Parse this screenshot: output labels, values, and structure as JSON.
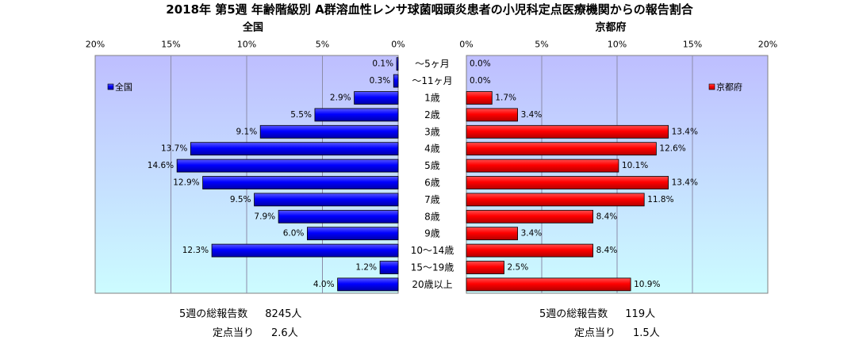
{
  "title": "2018年 第5週 年齢階級別 A群溶血性レンサ球菌咽頭炎患者の小児科定点医療機関からの報告割合",
  "colors": {
    "national": "#0000ff",
    "kyoto": "#ff0000",
    "plot_bg_top": "#bebeff",
    "plot_bg_bottom": "#ccfcff"
  },
  "chart_data": [
    {
      "type": "bar",
      "orientation": "horizontal",
      "direction": "right-to-left",
      "title": "全国",
      "categories": [
        "～5ヶ月",
        "～11ヶ月",
        "1歳",
        "2歳",
        "3歳",
        "4歳",
        "5歳",
        "6歳",
        "7歳",
        "8歳",
        "9歳",
        "10～14歳",
        "15～19歳",
        "20歳以上"
      ],
      "series": [
        {
          "name": "全国",
          "values": [
            0.1,
            0.3,
            2.9,
            5.5,
            9.1,
            13.7,
            14.6,
            12.9,
            9.5,
            7.9,
            6.0,
            12.3,
            1.2,
            4.0
          ]
        }
      ],
      "value_labels": [
        "0.1%",
        "0.3%",
        "2.9%",
        "5.5%",
        "9.1%",
        "13.7%",
        "14.6%",
        "12.9%",
        "9.5%",
        "7.9%",
        "6.0%",
        "12.3%",
        "1.2%",
        "4.0%"
      ],
      "ticks": [
        "20%",
        "15%",
        "10%",
        "5%",
        "0%"
      ],
      "xlim": [
        0,
        20
      ],
      "grid": true,
      "legend": "left"
    },
    {
      "type": "bar",
      "orientation": "horizontal",
      "direction": "left-to-right",
      "title": "京都府",
      "categories": [
        "～5ヶ月",
        "～11ヶ月",
        "1歳",
        "2歳",
        "3歳",
        "4歳",
        "5歳",
        "6歳",
        "7歳",
        "8歳",
        "9歳",
        "10～14歳",
        "15～19歳",
        "20歳以上"
      ],
      "series": [
        {
          "name": "京都府",
          "values": [
            0.0,
            0.0,
            1.7,
            3.4,
            13.4,
            12.6,
            10.1,
            13.4,
            11.8,
            8.4,
            3.4,
            8.4,
            2.5,
            10.9
          ]
        }
      ],
      "value_labels": [
        "0.0%",
        "0.0%",
        "1.7%",
        "3.4%",
        "13.4%",
        "12.6%",
        "10.1%",
        "13.4%",
        "11.8%",
        "8.4%",
        "3.4%",
        "8.4%",
        "2.5%",
        "10.9%"
      ],
      "ticks": [
        "0%",
        "5%",
        "10%",
        "15%",
        "20%"
      ],
      "xlim": [
        0,
        20
      ],
      "grid": true,
      "legend": "right"
    }
  ],
  "footer": {
    "national": {
      "total_label": "5週の総報告数",
      "total_value": "8245人",
      "per_label": "定点当り",
      "per_value": "2.6人"
    },
    "kyoto": {
      "total_label": "5週の総報告数",
      "total_value": "119人",
      "per_label": "定点当り",
      "per_value": "1.5人"
    }
  }
}
